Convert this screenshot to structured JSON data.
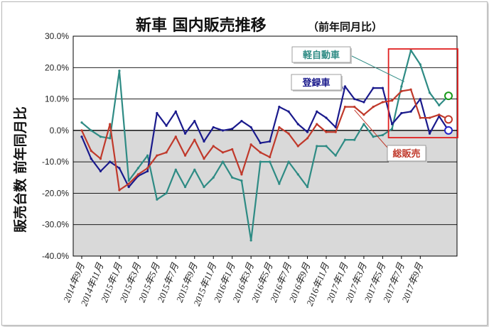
{
  "chart_data": {
    "type": "line",
    "title": "新車 国内販売推移",
    "subtitle": "（前年同月比）",
    "ylabel": "販売台数 前年同月比",
    "ylim": [
      -40,
      30
    ],
    "yticks": [
      "30.0%",
      "20.0%",
      "10.0%",
      "0.0%",
      "-10.0%",
      "-20.0%",
      "-30.0%",
      "-40.0%"
    ],
    "x_tick_labels": [
      "2014年9月",
      "2014年11月",
      "2015年1月",
      "2015年3月",
      "2015年5月",
      "2015年7月",
      "2015年9月",
      "2015年11月",
      "2016年1月",
      "2016年3月",
      "2016年5月",
      "2016年7月",
      "2016年9月",
      "2016年11月",
      "2017年1月",
      "2017年3月",
      "2017年5月",
      "2017年7月",
      "2017年9月"
    ],
    "negative_region_fill": "#d9d9d9",
    "highlight_box_color": "#e02020",
    "series": [
      {
        "name": "軽自動車",
        "color": "#2e8b84",
        "marker_color": "#1a9a1a",
        "values": [
          2.5,
          0,
          -2,
          -2.5,
          19,
          -16,
          -12,
          -8,
          -22,
          -20,
          -12.5,
          -18,
          -12.5,
          -18,
          -15,
          -10,
          -15,
          -16,
          -35,
          -10,
          -10,
          -17,
          -10,
          -14,
          -18,
          -5,
          -5,
          -8,
          -3,
          -3,
          2,
          -2,
          -1.5,
          0.5,
          14,
          25.5,
          21,
          12,
          8,
          11
        ]
      },
      {
        "name": "登録車",
        "color": "#1a1a8c",
        "marker_color": "#2323c8",
        "values": [
          -2,
          -9,
          -13,
          -10,
          -12,
          -18,
          -14.5,
          -13,
          5.5,
          1.5,
          6,
          -1,
          3,
          -3.5,
          1,
          0,
          0.5,
          3,
          1,
          -4,
          -3.5,
          7.5,
          6,
          2,
          -0.5,
          6,
          4,
          1,
          14,
          10,
          9,
          13.5,
          13.5,
          2,
          5.5,
          6,
          10,
          -1,
          4.5,
          0
        ]
      },
      {
        "name": "総販売",
        "color": "#c0392b",
        "marker_color": "#c0392b",
        "values": [
          0,
          -6.5,
          -9,
          2,
          -19,
          -17,
          -14,
          -12,
          -8,
          -7,
          -2,
          -8,
          -3,
          -9,
          -5,
          -7,
          -6,
          -14,
          -4.5,
          -7,
          -8.5,
          1,
          -1,
          -5,
          -2.5,
          2,
          -0.5,
          -0.5,
          7.5,
          7.5,
          5,
          7.5,
          9,
          9.5,
          12.5,
          13,
          4,
          4,
          5,
          3.5
        ]
      }
    ],
    "legend_placement": "callouts"
  }
}
